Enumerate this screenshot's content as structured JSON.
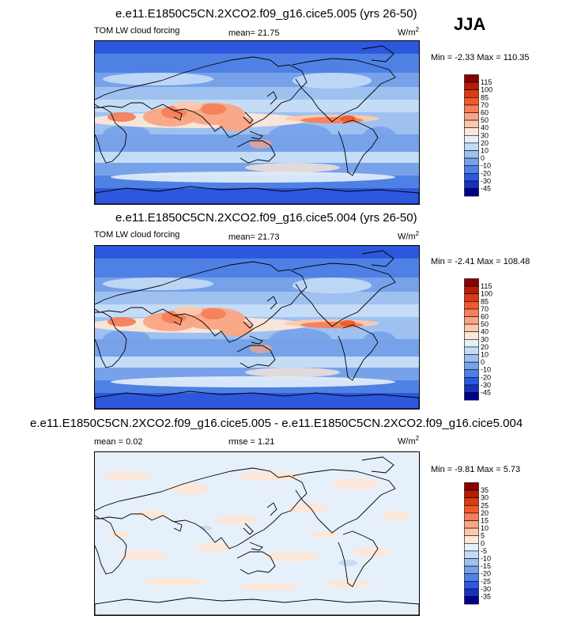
{
  "season": "JJA",
  "panels": [
    {
      "title": "e.e11.E1850C5CN.2XCO2.f09_g16.cice5.005 (yrs 26-50)",
      "left_label": "TOM LW cloud forcing",
      "stat_label": "mean=",
      "stat_value": "21.75",
      "units": "W/m",
      "units_exp": "2",
      "minmax": "Min =  -2.33 Max = 110.35",
      "colorbar_levels": [
        "115",
        "100",
        "85",
        "70",
        "60",
        "50",
        "40",
        "30",
        "20",
        "10",
        "0",
        "-10",
        "-20",
        "-30",
        "-45"
      ],
      "colorbar_colors": [
        "#8b0000",
        "#b81c06",
        "#d93b15",
        "#ee5a2b",
        "#f47f59",
        "#f9a584",
        "#fcc9ad",
        "#fde7d8",
        "#e6f0fb",
        "#c4dcf6",
        "#9fc1f0",
        "#77a2ea",
        "#4f81e4",
        "#2d57dc",
        "#1633bc",
        "#00008b"
      ]
    },
    {
      "title": "e.e11.E1850C5CN.2XCO2.f09_g16.cice5.004 (yrs 26-50)",
      "left_label": "TOM LW cloud forcing",
      "stat_label": "mean=",
      "stat_value": "21.73",
      "units": "W/m",
      "units_exp": "2",
      "minmax": "Min =  -2.41 Max = 108.48",
      "colorbar_levels": [
        "115",
        "100",
        "85",
        "70",
        "60",
        "50",
        "40",
        "30",
        "20",
        "10",
        "0",
        "-10",
        "-20",
        "-30",
        "-45"
      ],
      "colorbar_colors": [
        "#8b0000",
        "#b81c06",
        "#d93b15",
        "#ee5a2b",
        "#f47f59",
        "#f9a584",
        "#fcc9ad",
        "#fde7d8",
        "#e6f0fb",
        "#c4dcf6",
        "#9fc1f0",
        "#77a2ea",
        "#4f81e4",
        "#2d57dc",
        "#1633bc",
        "#00008b"
      ]
    },
    {
      "title": "e.e11.E1850C5CN.2XCO2.f09_g16.cice5.005 - e.e11.E1850C5CN.2XCO2.f09_g16.cice5.004",
      "left_label": "mean =",
      "left_value": "0.02",
      "stat_label": "rmse =",
      "stat_value": "1.21",
      "units": "W/m",
      "units_exp": "2",
      "minmax": "Min =  -9.81 Max =   5.73",
      "colorbar_levels": [
        "35",
        "30",
        "25",
        "20",
        "15",
        "10",
        "5",
        "0",
        "-5",
        "-10",
        "-15",
        "-20",
        "-25",
        "-30",
        "-35"
      ],
      "colorbar_colors": [
        "#8b0000",
        "#b81c06",
        "#d93b15",
        "#ee5a2b",
        "#f47f59",
        "#f9a584",
        "#fcc9ad",
        "#fde7d8",
        "#e6f0fb",
        "#c4dcf6",
        "#9fc1f0",
        "#77a2ea",
        "#4f81e4",
        "#2d57dc",
        "#1633bc",
        "#00008b"
      ]
    }
  ],
  "chart_data": [
    {
      "type": "heatmap",
      "title": "e.e11.E1850C5CN.2XCO2.f09_g16.cice5.005 (yrs 26-50)",
      "variable": "TOM LW cloud forcing",
      "season": "JJA",
      "units": "W/m2",
      "mean": 21.75,
      "min": -2.33,
      "max": 110.35,
      "contour_levels": [
        -45,
        -30,
        -20,
        -10,
        0,
        10,
        20,
        30,
        40,
        50,
        60,
        70,
        85,
        100,
        115
      ]
    },
    {
      "type": "heatmap",
      "title": "e.e11.E1850C5CN.2XCO2.f09_g16.cice5.004 (yrs 26-50)",
      "variable": "TOM LW cloud forcing",
      "season": "JJA",
      "units": "W/m2",
      "mean": 21.73,
      "min": -2.41,
      "max": 108.48,
      "contour_levels": [
        -45,
        -30,
        -20,
        -10,
        0,
        10,
        20,
        30,
        40,
        50,
        60,
        70,
        85,
        100,
        115
      ]
    },
    {
      "type": "heatmap",
      "title": "e.e11.E1850C5CN.2XCO2.f09_g16.cice5.005 - e.e11.E1850C5CN.2XCO2.f09_g16.cice5.004",
      "season": "JJA",
      "units": "W/m2",
      "mean": 0.02,
      "rmse": 1.21,
      "min": -9.81,
      "max": 5.73,
      "contour_levels": [
        -35,
        -30,
        -25,
        -20,
        -15,
        -10,
        -5,
        0,
        5,
        10,
        15,
        20,
        25,
        30,
        35
      ]
    }
  ]
}
